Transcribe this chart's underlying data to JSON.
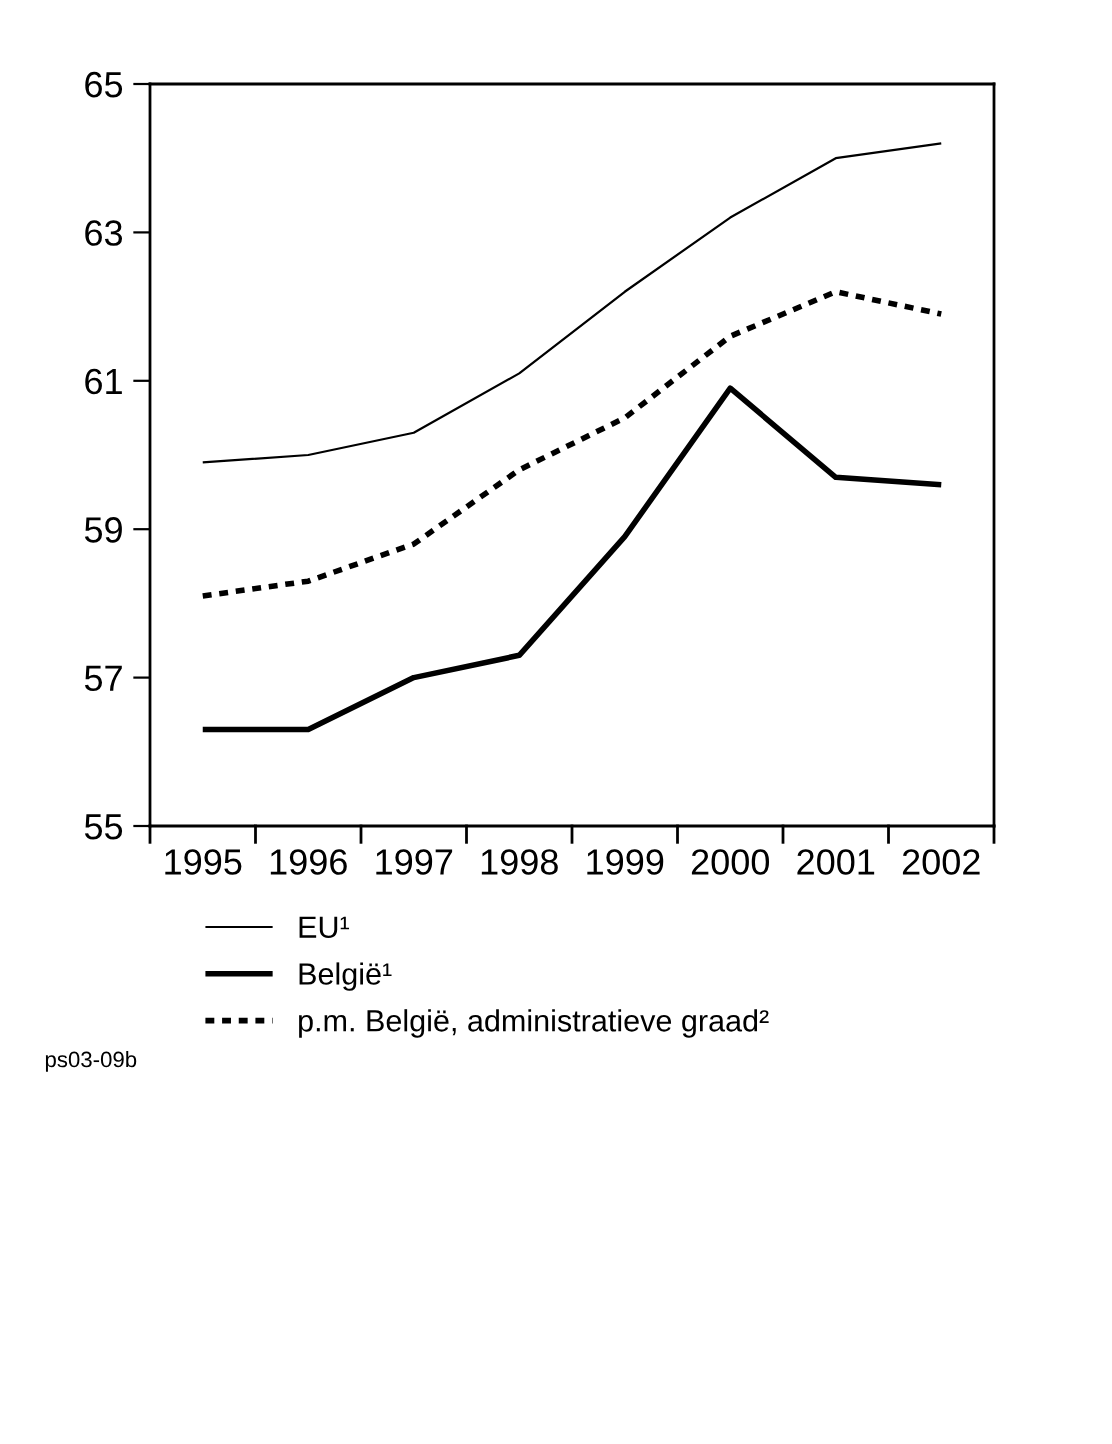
{
  "chart_data": {
    "type": "line",
    "categories": [
      "1995",
      "1996",
      "1997",
      "1998",
      "1999",
      "2000",
      "2001",
      "2002"
    ],
    "series": [
      {
        "name": "EU¹",
        "color": "#000000",
        "line_style": "solid",
        "values": [
          59.9,
          60.0,
          60.3,
          61.1,
          62.2,
          63.2,
          64.0,
          64.2
        ]
      },
      {
        "name": "België¹",
        "color": "#000000",
        "line_style": "solid",
        "values": [
          56.3,
          56.3,
          57.0,
          57.3,
          58.9,
          60.9,
          59.7,
          59.6
        ]
      },
      {
        "name": "p.m. België, administratieve graad²",
        "color": "#000000",
        "line_style": "dashed",
        "values": [
          58.1,
          58.3,
          58.8,
          59.8,
          60.5,
          61.6,
          62.2,
          61.9
        ]
      }
    ],
    "ylim": [
      55,
      65
    ],
    "yticks": [
      55,
      57,
      59,
      61,
      63,
      65
    ],
    "grid": false,
    "legend": "bottom",
    "marker": "none",
    "annotations": [
      "ps03-09b"
    ]
  }
}
